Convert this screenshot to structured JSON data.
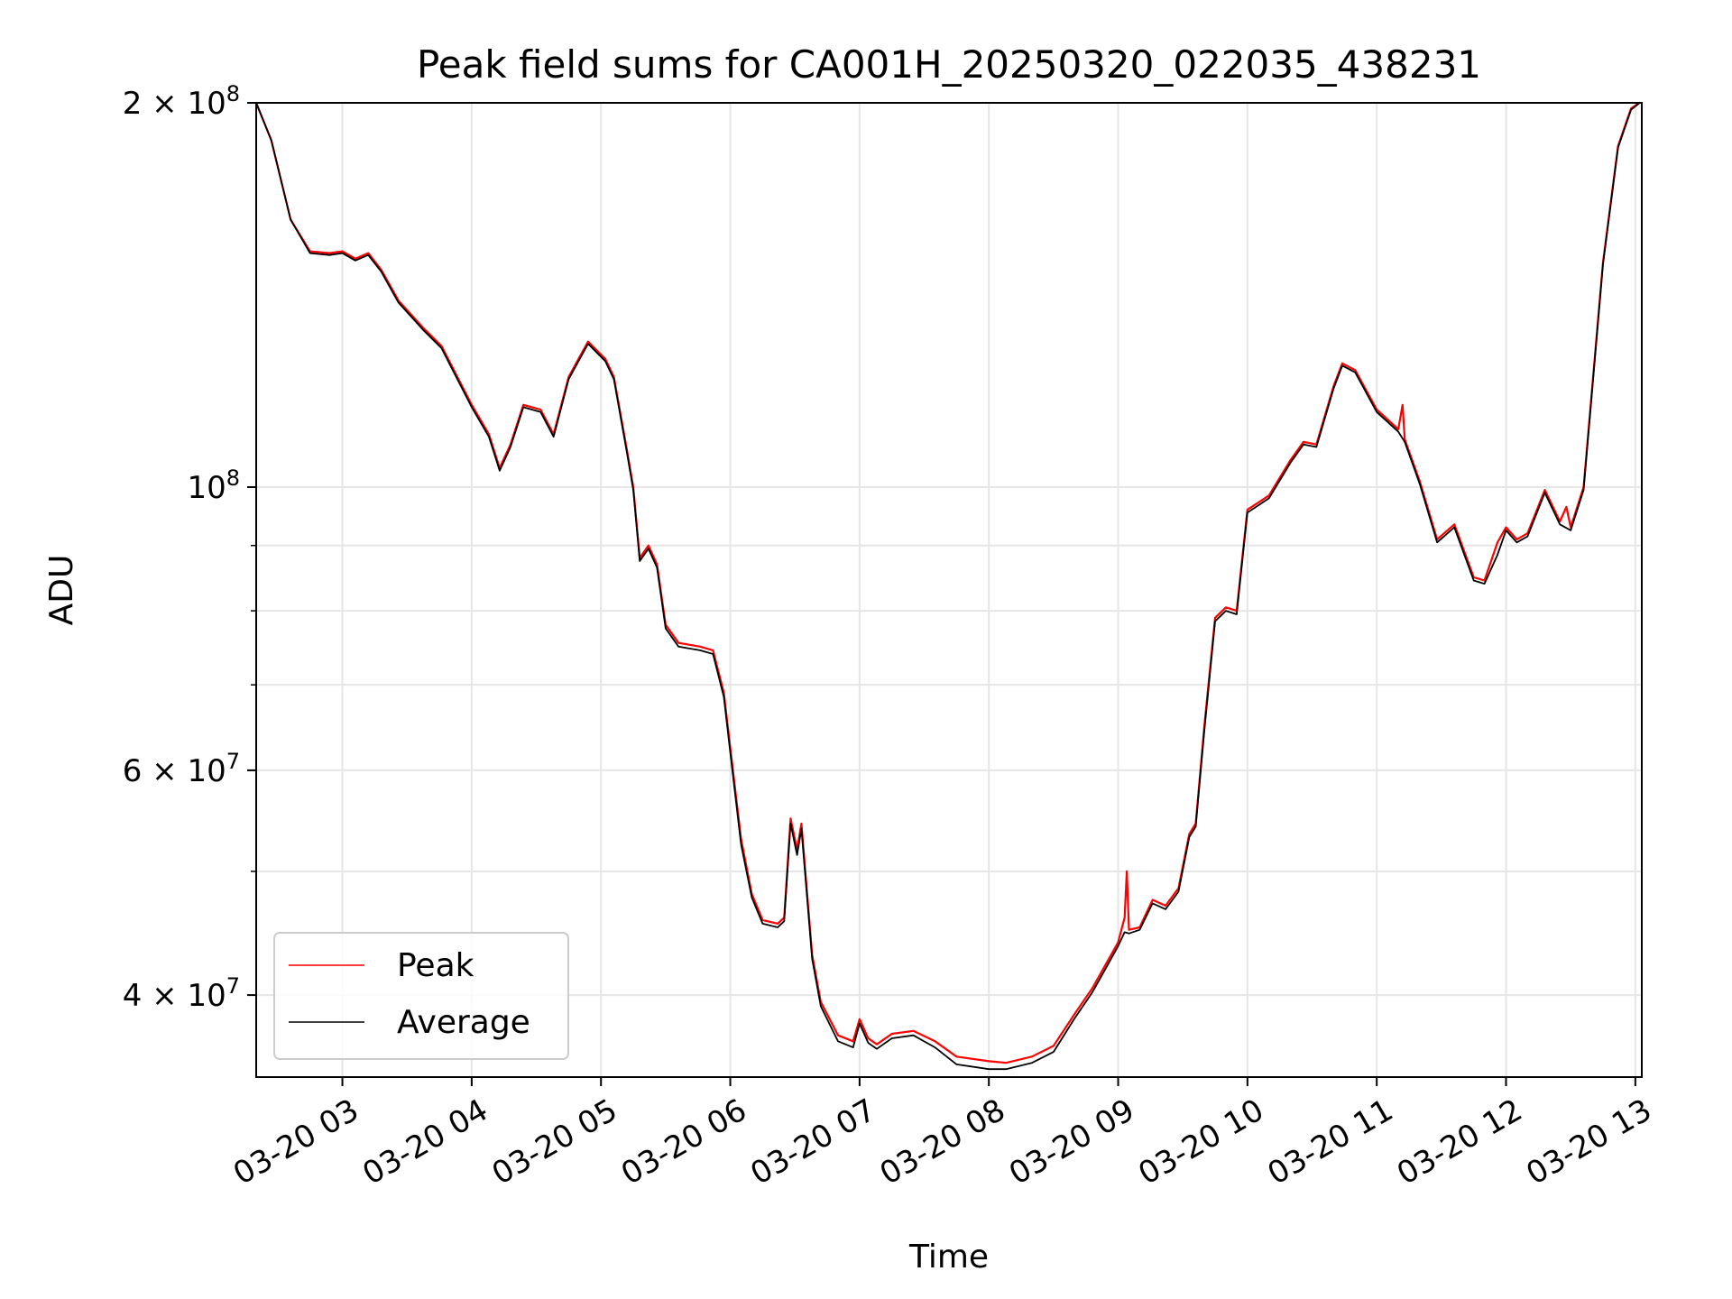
{
  "chart_data": {
    "type": "line",
    "title": "Peak field sums for CA001H_20250320_022035_438231",
    "xlabel": "Time",
    "ylabel": "ADU",
    "xlim": [
      "2025-03-20 02:20",
      "2025-03-20 13:03"
    ],
    "ylim": [
      34500000,
      200000000
    ],
    "yscale": "log",
    "grid": true,
    "legend_position": "lower-left",
    "x_ticks": [
      "2025-03-20 03:00",
      "2025-03-20 04:00",
      "2025-03-20 05:00",
      "2025-03-20 06:00",
      "2025-03-20 07:00",
      "2025-03-20 08:00",
      "2025-03-20 09:00",
      "2025-03-20 10:00",
      "2025-03-20 11:00",
      "2025-03-20 12:00",
      "2025-03-20 13:00"
    ],
    "x_tick_labels": [
      "03-20 03",
      "03-20 04",
      "03-20 05",
      "03-20 06",
      "03-20 07",
      "03-20 08",
      "03-20 09",
      "03-20 10",
      "03-20 11",
      "03-20 12",
      "03-20 13"
    ],
    "y_ticks": [
      {
        "value": 200000000,
        "mantissa": "2",
        "exponent": "8"
      },
      {
        "value": 100000000,
        "mantissa": "",
        "exponent": "8"
      },
      {
        "value": 60000000,
        "mantissa": "6",
        "exponent": "7"
      },
      {
        "value": 40000000,
        "mantissa": "4",
        "exponent": "7"
      }
    ],
    "y_minor_ticks": [
      90000000,
      80000000,
      70000000,
      50000000
    ],
    "series": [
      {
        "name": "Peak",
        "color": "#ff0000",
        "points": [
          [
            "2025-03-20 02:20",
            200000000
          ],
          [
            "2025-03-20 02:27",
            187000000
          ],
          [
            "2025-03-20 02:36",
            162000000
          ],
          [
            "2025-03-20 02:45",
            153000000
          ],
          [
            "2025-03-20 02:54",
            152500000
          ],
          [
            "2025-03-20 03:00",
            153000000
          ],
          [
            "2025-03-20 03:06",
            151000000
          ],
          [
            "2025-03-20 03:12",
            152500000
          ],
          [
            "2025-03-20 03:18",
            148000000
          ],
          [
            "2025-03-20 03:26",
            140000000
          ],
          [
            "2025-03-20 03:38",
            133000000
          ],
          [
            "2025-03-20 03:46",
            129000000
          ],
          [
            "2025-03-20 04:00",
            116000000
          ],
          [
            "2025-03-20 04:08",
            110000000
          ],
          [
            "2025-03-20 04:13",
            103500000
          ],
          [
            "2025-03-20 04:18",
            108000000
          ],
          [
            "2025-03-20 04:24",
            116000000
          ],
          [
            "2025-03-20 04:32",
            115000000
          ],
          [
            "2025-03-20 04:38",
            110000000
          ],
          [
            "2025-03-20 04:45",
            122000000
          ],
          [
            "2025-03-20 04:54",
            130000000
          ],
          [
            "2025-03-20 05:02",
            126000000
          ],
          [
            "2025-03-20 05:06",
            122000000
          ],
          [
            "2025-03-20 05:12",
            107000000
          ],
          [
            "2025-03-20 05:15",
            100000000
          ],
          [
            "2025-03-20 05:18",
            88000000
          ],
          [
            "2025-03-20 05:22",
            90000000
          ],
          [
            "2025-03-20 05:26",
            87000000
          ],
          [
            "2025-03-20 05:30",
            78000000
          ],
          [
            "2025-03-20 05:36",
            75500000
          ],
          [
            "2025-03-20 05:46",
            75000000
          ],
          [
            "2025-03-20 05:52",
            74500000
          ],
          [
            "2025-03-20 05:57",
            69000000
          ],
          [
            "2025-03-20 06:00",
            62500000
          ],
          [
            "2025-03-20 06:05",
            53000000
          ],
          [
            "2025-03-20 06:10",
            48000000
          ],
          [
            "2025-03-20 06:15",
            45800000
          ],
          [
            "2025-03-20 06:22",
            45500000
          ],
          [
            "2025-03-20 06:25",
            46000000
          ],
          [
            "2025-03-20 06:28",
            55000000
          ],
          [
            "2025-03-20 06:31",
            52000000
          ],
          [
            "2025-03-20 06:33",
            54500000
          ],
          [
            "2025-03-20 06:38",
            43000000
          ],
          [
            "2025-03-20 06:42",
            39500000
          ],
          [
            "2025-03-20 06:50",
            37200000
          ],
          [
            "2025-03-20 06:57",
            36800000
          ],
          [
            "2025-03-20 07:00",
            38300000
          ],
          [
            "2025-03-20 07:04",
            37000000
          ],
          [
            "2025-03-20 07:08",
            36600000
          ],
          [
            "2025-03-20 07:15",
            37300000
          ],
          [
            "2025-03-20 07:25",
            37500000
          ],
          [
            "2025-03-20 07:35",
            36800000
          ],
          [
            "2025-03-20 07:45",
            35800000
          ],
          [
            "2025-03-20 08:00",
            35500000
          ],
          [
            "2025-03-20 08:08",
            35400000
          ],
          [
            "2025-03-20 08:20",
            35800000
          ],
          [
            "2025-03-20 08:30",
            36500000
          ],
          [
            "2025-03-20 08:40",
            38700000
          ],
          [
            "2025-03-20 08:48",
            40500000
          ],
          [
            "2025-03-20 08:55",
            42500000
          ],
          [
            "2025-03-20 09:00",
            44000000
          ],
          [
            "2025-03-20 09:03",
            46000000
          ],
          [
            "2025-03-20 09:04",
            50000000
          ],
          [
            "2025-03-20 09:05",
            45000000
          ],
          [
            "2025-03-20 09:10",
            45200000
          ],
          [
            "2025-03-20 09:16",
            47500000
          ],
          [
            "2025-03-20 09:22",
            47000000
          ],
          [
            "2025-03-20 09:28",
            48500000
          ],
          [
            "2025-03-20 09:33",
            53500000
          ],
          [
            "2025-03-20 09:36",
            54500000
          ],
          [
            "2025-03-20 09:40",
            65000000
          ],
          [
            "2025-03-20 09:45",
            79000000
          ],
          [
            "2025-03-20 09:50",
            80500000
          ],
          [
            "2025-03-20 09:55",
            80000000
          ],
          [
            "2025-03-20 10:00",
            96000000
          ],
          [
            "2025-03-20 10:10",
            98500000
          ],
          [
            "2025-03-20 10:20",
            105000000
          ],
          [
            "2025-03-20 10:26",
            108500000
          ],
          [
            "2025-03-20 10:32",
            108000000
          ],
          [
            "2025-03-20 10:40",
            120000000
          ],
          [
            "2025-03-20 10:44",
            125000000
          ],
          [
            "2025-03-20 10:50",
            123500000
          ],
          [
            "2025-03-20 11:00",
            115000000
          ],
          [
            "2025-03-20 11:10",
            111000000
          ],
          [
            "2025-03-20 11:12",
            116000000
          ],
          [
            "2025-03-20 11:13",
            109000000
          ],
          [
            "2025-03-20 11:20",
            101000000
          ],
          [
            "2025-03-20 11:28",
            91000000
          ],
          [
            "2025-03-20 11:36",
            93500000
          ],
          [
            "2025-03-20 11:45",
            85000000
          ],
          [
            "2025-03-20 11:50",
            84500000
          ],
          [
            "2025-03-20 11:56",
            90500000
          ],
          [
            "2025-03-20 12:00",
            93000000
          ],
          [
            "2025-03-20 12:05",
            91000000
          ],
          [
            "2025-03-20 12:10",
            92000000
          ],
          [
            "2025-03-20 12:18",
            99500000
          ],
          [
            "2025-03-20 12:25",
            94000000
          ],
          [
            "2025-03-20 12:28",
            96500000
          ],
          [
            "2025-03-20 12:30",
            93000000
          ],
          [
            "2025-03-20 12:36",
            100000000
          ],
          [
            "2025-03-20 12:45",
            150000000
          ],
          [
            "2025-03-20 12:52",
            185000000
          ],
          [
            "2025-03-20 12:58",
            198000000
          ],
          [
            "2025-03-20 13:02",
            200000000
          ]
        ]
      },
      {
        "name": "Average",
        "color": "#000000",
        "points": [
          [
            "2025-03-20 02:20",
            200000000
          ],
          [
            "2025-03-20 02:27",
            187000000
          ],
          [
            "2025-03-20 02:36",
            162000000
          ],
          [
            "2025-03-20 02:45",
            152500000
          ],
          [
            "2025-03-20 02:54",
            152000000
          ],
          [
            "2025-03-20 03:00",
            152500000
          ],
          [
            "2025-03-20 03:06",
            150500000
          ],
          [
            "2025-03-20 03:12",
            152000000
          ],
          [
            "2025-03-20 03:18",
            147500000
          ],
          [
            "2025-03-20 03:26",
            139500000
          ],
          [
            "2025-03-20 03:38",
            132500000
          ],
          [
            "2025-03-20 03:46",
            128500000
          ],
          [
            "2025-03-20 04:00",
            115500000
          ],
          [
            "2025-03-20 04:08",
            109500000
          ],
          [
            "2025-03-20 04:13",
            103000000
          ],
          [
            "2025-03-20 04:18",
            107500000
          ],
          [
            "2025-03-20 04:24",
            115500000
          ],
          [
            "2025-03-20 04:32",
            114500000
          ],
          [
            "2025-03-20 04:38",
            109500000
          ],
          [
            "2025-03-20 04:45",
            121500000
          ],
          [
            "2025-03-20 04:54",
            129500000
          ],
          [
            "2025-03-20 05:02",
            125500000
          ],
          [
            "2025-03-20 05:06",
            121500000
          ],
          [
            "2025-03-20 05:12",
            106500000
          ],
          [
            "2025-03-20 05:15",
            99500000
          ],
          [
            "2025-03-20 05:18",
            87500000
          ],
          [
            "2025-03-20 05:22",
            89500000
          ],
          [
            "2025-03-20 05:26",
            86500000
          ],
          [
            "2025-03-20 05:30",
            77500000
          ],
          [
            "2025-03-20 05:36",
            75000000
          ],
          [
            "2025-03-20 05:46",
            74500000
          ],
          [
            "2025-03-20 05:52",
            74000000
          ],
          [
            "2025-03-20 05:57",
            68500000
          ],
          [
            "2025-03-20 06:00",
            62000000
          ],
          [
            "2025-03-20 06:05",
            52500000
          ],
          [
            "2025-03-20 06:10",
            47700000
          ],
          [
            "2025-03-20 06:15",
            45500000
          ],
          [
            "2025-03-20 06:22",
            45200000
          ],
          [
            "2025-03-20 06:25",
            45700000
          ],
          [
            "2025-03-20 06:28",
            54500000
          ],
          [
            "2025-03-20 06:31",
            51500000
          ],
          [
            "2025-03-20 06:33",
            54000000
          ],
          [
            "2025-03-20 06:38",
            42700000
          ],
          [
            "2025-03-20 06:42",
            39200000
          ],
          [
            "2025-03-20 06:50",
            36800000
          ],
          [
            "2025-03-20 06:57",
            36400000
          ],
          [
            "2025-03-20 07:00",
            38000000
          ],
          [
            "2025-03-20 07:04",
            36700000
          ],
          [
            "2025-03-20 07:08",
            36300000
          ],
          [
            "2025-03-20 07:15",
            37000000
          ],
          [
            "2025-03-20 07:25",
            37200000
          ],
          [
            "2025-03-20 07:35",
            36400000
          ],
          [
            "2025-03-20 07:45",
            35300000
          ],
          [
            "2025-03-20 08:00",
            35000000
          ],
          [
            "2025-03-20 08:08",
            35000000
          ],
          [
            "2025-03-20 08:20",
            35400000
          ],
          [
            "2025-03-20 08:30",
            36100000
          ],
          [
            "2025-03-20 08:40",
            38400000
          ],
          [
            "2025-03-20 08:48",
            40200000
          ],
          [
            "2025-03-20 08:55",
            42200000
          ],
          [
            "2025-03-20 09:00",
            43700000
          ],
          [
            "2025-03-20 09:03",
            44800000
          ],
          [
            "2025-03-20 09:05",
            44700000
          ],
          [
            "2025-03-20 09:10",
            45000000
          ],
          [
            "2025-03-20 09:16",
            47200000
          ],
          [
            "2025-03-20 09:22",
            46700000
          ],
          [
            "2025-03-20 09:28",
            48200000
          ],
          [
            "2025-03-20 09:33",
            53200000
          ],
          [
            "2025-03-20 09:36",
            54200000
          ],
          [
            "2025-03-20 09:40",
            64500000
          ],
          [
            "2025-03-20 09:45",
            78500000
          ],
          [
            "2025-03-20 09:50",
            80000000
          ],
          [
            "2025-03-20 09:55",
            79500000
          ],
          [
            "2025-03-20 10:00",
            95500000
          ],
          [
            "2025-03-20 10:10",
            98000000
          ],
          [
            "2025-03-20 10:20",
            104500000
          ],
          [
            "2025-03-20 10:26",
            108000000
          ],
          [
            "2025-03-20 10:32",
            107500000
          ],
          [
            "2025-03-20 10:40",
            119500000
          ],
          [
            "2025-03-20 10:44",
            124500000
          ],
          [
            "2025-03-20 10:50",
            123000000
          ],
          [
            "2025-03-20 11:00",
            114500000
          ],
          [
            "2025-03-20 11:10",
            110500000
          ],
          [
            "2025-03-20 11:13",
            108500000
          ],
          [
            "2025-03-20 11:20",
            100500000
          ],
          [
            "2025-03-20 11:28",
            90500000
          ],
          [
            "2025-03-20 11:36",
            93000000
          ],
          [
            "2025-03-20 11:45",
            84500000
          ],
          [
            "2025-03-20 11:50",
            84000000
          ],
          [
            "2025-03-20 11:56",
            88500000
          ],
          [
            "2025-03-20 12:00",
            92500000
          ],
          [
            "2025-03-20 12:05",
            90500000
          ],
          [
            "2025-03-20 12:10",
            91500000
          ],
          [
            "2025-03-20 12:18",
            99000000
          ],
          [
            "2025-03-20 12:25",
            93500000
          ],
          [
            "2025-03-20 12:30",
            92500000
          ],
          [
            "2025-03-20 12:36",
            99500000
          ],
          [
            "2025-03-20 12:45",
            149500000
          ],
          [
            "2025-03-20 12:52",
            184500000
          ],
          [
            "2025-03-20 12:58",
            197500000
          ],
          [
            "2025-03-20 13:02",
            200000000
          ]
        ]
      }
    ]
  }
}
